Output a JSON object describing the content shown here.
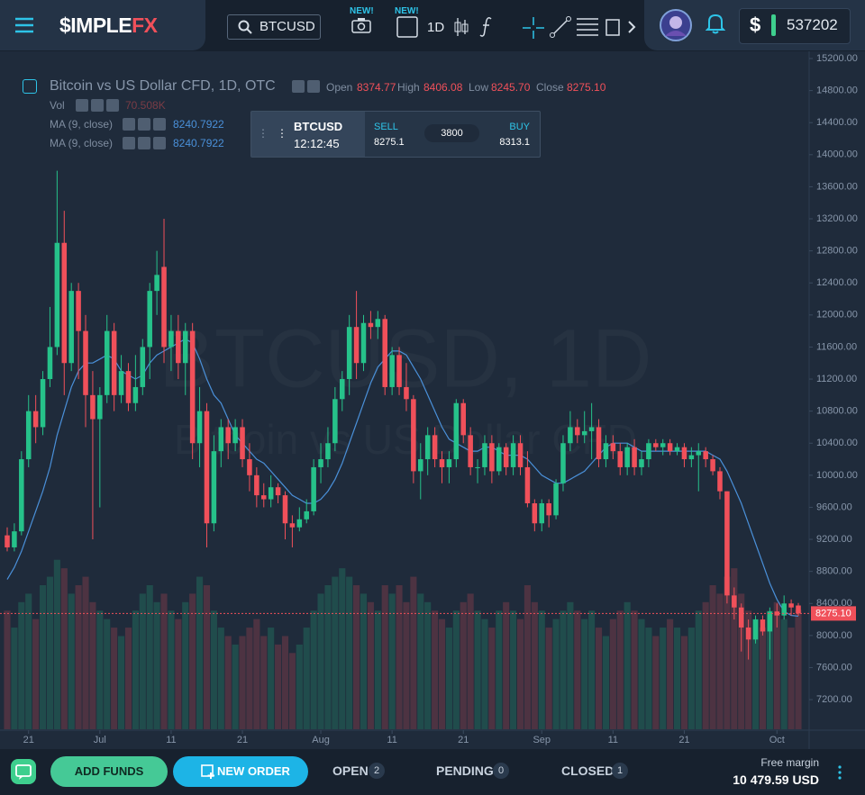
{
  "header": {
    "brand_main": "$IMPLE",
    "brand_accent": "FX",
    "symbol": "BTCUSD",
    "new_badges": [
      "NEW!",
      "NEW!"
    ],
    "timeframe": "1D",
    "currency": "$",
    "balance": "537202"
  },
  "legend": {
    "title": "Bitcoin vs US Dollar CFD, 1D, OTC",
    "ohlc": [
      {
        "label": "Open",
        "value": "8374.77"
      },
      {
        "label": "High",
        "value": "8406.08"
      },
      {
        "label": "Low",
        "value": "8245.70"
      },
      {
        "label": "Close",
        "value": "8275.10"
      }
    ],
    "volume": {
      "label": "Vol",
      "value": "70.508K"
    },
    "indicators": [
      {
        "label": "MA (9, close)",
        "value": "8240.7922"
      },
      {
        "label": "MA (9, close)",
        "value": "8240.7922"
      }
    ]
  },
  "trade_widget": {
    "symbol": "BTCUSD",
    "time": "12:12:45",
    "sell_label": "SELL",
    "sell_price": "8275.1",
    "spread": "3800",
    "buy_label": "BUY",
    "buy_price": "8313.1"
  },
  "footer": {
    "add_funds": "ADD FUNDS",
    "new_order": "NEW ORDER",
    "tabs": [
      {
        "label": "OPEN",
        "count": "2"
      },
      {
        "label": "PENDING",
        "count": "0"
      },
      {
        "label": "CLOSED",
        "count": "1"
      }
    ],
    "margin_label": "Free margin",
    "margin_value": "10 479.59 USD"
  },
  "chart_data": {
    "type": "candlestick",
    "watermark": [
      "BTCUSD, 1D",
      "Bitcoin vs US Dollar CFD"
    ],
    "up_color": "#26c28a",
    "down_color": "#f0505a",
    "volume_up_color": "rgba(38,194,138,0.22)",
    "volume_down_color": "rgba(240,80,90,0.22)",
    "ma_color": "#4a90d9",
    "open": [
      9250,
      9100,
      9300,
      10200,
      10800,
      10600,
      11200,
      11600,
      12900,
      11400,
      12300,
      11800,
      11000,
      10700,
      11000,
      11800,
      11000,
      11300,
      10900,
      11100,
      11600,
      12300,
      12600,
      11600,
      11800,
      11400,
      11800,
      10400,
      10800,
      9400,
      10300,
      10600,
      10400,
      10600,
      10200,
      10000,
      9750,
      9700,
      9850,
      9750,
      9400,
      9350,
      9450,
      9550,
      10100,
      10200,
      10400,
      10950,
      11200,
      11850,
      11400,
      11900,
      11850,
      11950,
      11100,
      11500,
      11100,
      10950,
      10050,
      10200,
      10500,
      10200,
      10100,
      10200,
      10900,
      10500,
      10100,
      10100,
      10400,
      10050,
      10350,
      10100,
      10400,
      10100,
      9650,
      9400,
      9650,
      9500,
      9900,
      10400,
      10600,
      10500,
      10550,
      10600,
      10200,
      10400,
      10300,
      10100,
      10350,
      10100,
      10200,
      10400,
      10350,
      10400,
      10300,
      10350,
      10200,
      10250,
      10300,
      10200,
      10050,
      9800,
      8500,
      8350,
      8100,
      7950,
      8200,
      8050,
      8300,
      8250,
      8400,
      8374.77
    ],
    "high": [
      9350,
      9400,
      10300,
      11000,
      11000,
      11300,
      12100,
      13800,
      13300,
      12400,
      12400,
      12000,
      11300,
      11100,
      12000,
      11900,
      11500,
      11400,
      11500,
      11700,
      12400,
      12800,
      13200,
      12000,
      12000,
      11900,
      11900,
      11100,
      10900,
      10500,
      10700,
      10700,
      10700,
      10700,
      10400,
      10100,
      9900,
      10000,
      9900,
      9800,
      9500,
      9600,
      9700,
      10200,
      10400,
      10600,
      11100,
      11300,
      12000,
      12300,
      12000,
      12050,
      12050,
      12000,
      11600,
      11600,
      11400,
      11000,
      10400,
      10600,
      10600,
      10300,
      10300,
      10950,
      10950,
      10600,
      10200,
      10500,
      10500,
      10400,
      10400,
      10500,
      10500,
      10300,
      9700,
      9700,
      9700,
      9950,
      10500,
      10800,
      10700,
      10800,
      10900,
      10700,
      10500,
      10500,
      10400,
      10400,
      10450,
      10300,
      10450,
      10450,
      10450,
      10450,
      10400,
      10400,
      10350,
      10400,
      10350,
      10250,
      10100,
      9800,
      8600,
      8400,
      8200,
      8250,
      8250,
      8350,
      8400,
      8500,
      8450,
      8406.08
    ],
    "low": [
      9050,
      9050,
      9250,
      10100,
      10400,
      10500,
      11100,
      11500,
      11000,
      11300,
      11200,
      10600,
      9200,
      9600,
      10900,
      10800,
      10900,
      10800,
      10800,
      11000,
      11200,
      12000,
      11400,
      11300,
      11200,
      11000,
      10200,
      10100,
      9100,
      9300,
      10100,
      10200,
      10300,
      10100,
      9800,
      9600,
      9600,
      9600,
      9650,
      9200,
      9100,
      9300,
      9400,
      9500,
      9900,
      10100,
      10300,
      10800,
      11000,
      11200,
      11300,
      11700,
      11700,
      11000,
      11000,
      11000,
      10800,
      9900,
      9700,
      10000,
      10100,
      9900,
      9900,
      10100,
      10400,
      10000,
      9900,
      10000,
      9900,
      10000,
      10000,
      10000,
      10000,
      9600,
      9300,
      9300,
      9350,
      9450,
      9800,
      10300,
      10400,
      10400,
      10200,
      10100,
      10100,
      10200,
      10000,
      10000,
      10000,
      10000,
      10100,
      10300,
      10250,
      10250,
      10250,
      10100,
      10100,
      9800,
      10100,
      10000,
      9700,
      8400,
      8200,
      7800,
      7700,
      7900,
      8000,
      7700,
      8100,
      8200,
      8250,
      8245.7
    ],
    "close": [
      9100,
      9300,
      10200,
      10800,
      10600,
      11200,
      11600,
      12900,
      11400,
      12300,
      11800,
      11000,
      10700,
      11000,
      11800,
      11000,
      11300,
      10900,
      11100,
      11600,
      12300,
      12500,
      11600,
      11800,
      11400,
      11800,
      10400,
      10800,
      9400,
      10300,
      10600,
      10400,
      10600,
      10200,
      10000,
      9750,
      9700,
      9850,
      9750,
      9400,
      9350,
      9450,
      9550,
      10100,
      10200,
      10400,
      10950,
      11200,
      11850,
      11400,
      11900,
      11850,
      11950,
      11100,
      11500,
      11100,
      10950,
      10050,
      10200,
      10500,
      10200,
      10100,
      10200,
      10900,
      10500,
      10100,
      10100,
      10400,
      10050,
      10350,
      10100,
      10400,
      10100,
      9650,
      9400,
      9650,
      9500,
      9900,
      10400,
      10600,
      10500,
      10550,
      10600,
      10200,
      10400,
      10300,
      10100,
      10350,
      10100,
      10200,
      10400,
      10350,
      10400,
      10300,
      10350,
      10200,
      10250,
      10300,
      10200,
      10050,
      9800,
      8500,
      8350,
      8100,
      7950,
      8200,
      8050,
      8300,
      8250,
      8400,
      8350,
      8275.1
    ],
    "volume": [
      70,
      60,
      75,
      80,
      65,
      85,
      90,
      100,
      95,
      80,
      85,
      90,
      75,
      70,
      65,
      60,
      55,
      60,
      70,
      80,
      85,
      75,
      80,
      70,
      65,
      75,
      80,
      90,
      85,
      70,
      60,
      55,
      50,
      55,
      60,
      65,
      55,
      60,
      50,
      55,
      45,
      50,
      60,
      70,
      80,
      85,
      90,
      95,
      90,
      85,
      80,
      75,
      70,
      85,
      80,
      85,
      75,
      90,
      80,
      75,
      70,
      65,
      60,
      70,
      75,
      80,
      70,
      65,
      60,
      70,
      75,
      70,
      65,
      85,
      75,
      70,
      60,
      65,
      70,
      75,
      70,
      65,
      70,
      60,
      55,
      65,
      70,
      75,
      70,
      65,
      60,
      55,
      60,
      65,
      60,
      55,
      60,
      70,
      75,
      85,
      80,
      90,
      95,
      80,
      70,
      65,
      60,
      70,
      75,
      65,
      60,
      70.508
    ],
    "ma": [
      8700,
      8850,
      9050,
      9300,
      9550,
      9800,
      10100,
      10500,
      10800,
      11100,
      11300,
      11400,
      11400,
      11450,
      11500,
      11450,
      11300,
      11250,
      11200,
      11250,
      11400,
      11500,
      11550,
      11600,
      11650,
      11700,
      11650,
      11450,
      11200,
      11000,
      10900,
      10700,
      10500,
      10400,
      10300,
      10200,
      10150,
      10050,
      9950,
      9850,
      9750,
      9700,
      9650,
      9650,
      9700,
      9800,
      9950,
      10150,
      10400,
      10650,
      10900,
      11150,
      11350,
      11450,
      11550,
      11550,
      11500,
      11350,
      11200,
      11000,
      10800,
      10600,
      10450,
      10400,
      10350,
      10300,
      10300,
      10350,
      10350,
      10300,
      10250,
      10250,
      10250,
      10200,
      10100,
      10000,
      9950,
      9900,
      9900,
      9950,
      10000,
      10050,
      10150,
      10250,
      10350,
      10400,
      10400,
      10400,
      10350,
      10300,
      10300,
      10300,
      10300,
      10300,
      10300,
      10300,
      10300,
      10300,
      10300,
      10250,
      10200,
      10050,
      9850,
      9650,
      9400,
      9150,
      8900,
      8650,
      8450,
      8300,
      8250,
      8240.7922
    ],
    "last_price": {
      "value": 8275.1,
      "label": "8275.10"
    },
    "ylim": [
      6830,
      15290
    ],
    "vlim": [
      0,
      400
    ],
    "yticks": [
      {
        "value": 15200,
        "label": "15200.00"
      },
      {
        "value": 14800,
        "label": "14800.00"
      },
      {
        "value": 14400,
        "label": "14400.00"
      },
      {
        "value": 14000,
        "label": "14000.00"
      },
      {
        "value": 13600,
        "label": "13600.00"
      },
      {
        "value": 13200,
        "label": "13200.00"
      },
      {
        "value": 12800,
        "label": "12800.00"
      },
      {
        "value": 12400,
        "label": "12400.00"
      },
      {
        "value": 12000,
        "label": "12000.00"
      },
      {
        "value": 11600,
        "label": "11600.00"
      },
      {
        "value": 11200,
        "label": "11200.00"
      },
      {
        "value": 10800,
        "label": "10800.00"
      },
      {
        "value": 10400,
        "label": "10400.00"
      },
      {
        "value": 10000,
        "label": "10000.00"
      },
      {
        "value": 9600,
        "label": "9600.00"
      },
      {
        "value": 9200,
        "label": "9200.00"
      },
      {
        "value": 8800,
        "label": "8800.00"
      },
      {
        "value": 8400,
        "label": "8400.00"
      },
      {
        "value": 8000,
        "label": "8000.00"
      },
      {
        "value": 7600,
        "label": "7600.00"
      },
      {
        "value": 7200,
        "label": "7200.00"
      }
    ],
    "xticks": [
      {
        "value": 3,
        "label": "21"
      },
      {
        "value": 13,
        "label": "Jul"
      },
      {
        "value": 23,
        "label": "11"
      },
      {
        "value": 33,
        "label": "21"
      },
      {
        "value": 44,
        "label": "Aug"
      },
      {
        "value": 54,
        "label": "11"
      },
      {
        "value": 64,
        "label": "21"
      },
      {
        "value": 75,
        "label": "Sep"
      },
      {
        "value": 85,
        "label": "11"
      },
      {
        "value": 95,
        "label": "21"
      },
      {
        "value": 108,
        "label": "Oct"
      }
    ]
  }
}
